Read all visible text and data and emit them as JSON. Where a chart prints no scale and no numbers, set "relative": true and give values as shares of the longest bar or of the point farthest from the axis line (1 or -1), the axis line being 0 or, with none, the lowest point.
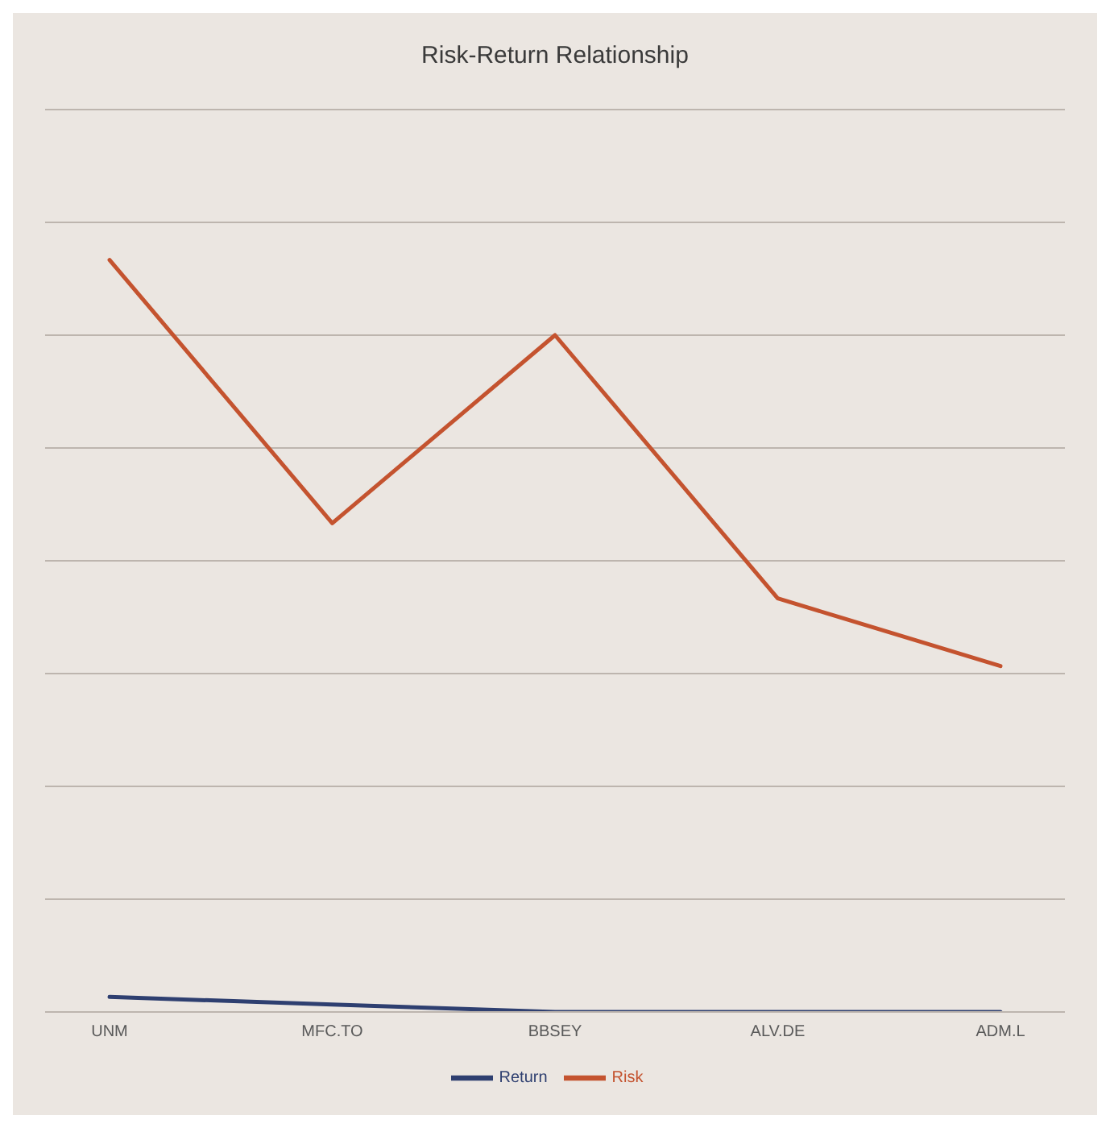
{
  "chart_data": {
    "type": "line",
    "title": "Risk-Return Relationship",
    "categories": [
      "UNM",
      "MFC.TO",
      "BBSEY",
      "ALV.DE",
      "ADM.L"
    ],
    "series": [
      {
        "name": "Return",
        "color": "#2e3f70",
        "values": [
          0.02,
          0.01,
          0,
          0,
          0
        ]
      },
      {
        "name": "Risk",
        "color": "#c4532f",
        "values": [
          1,
          0.65,
          0.9,
          0.55,
          0.46
        ]
      }
    ],
    "relative": true,
    "grid": "y",
    "legend": "bottom",
    "marker": "none",
    "line_style": "solid"
  }
}
